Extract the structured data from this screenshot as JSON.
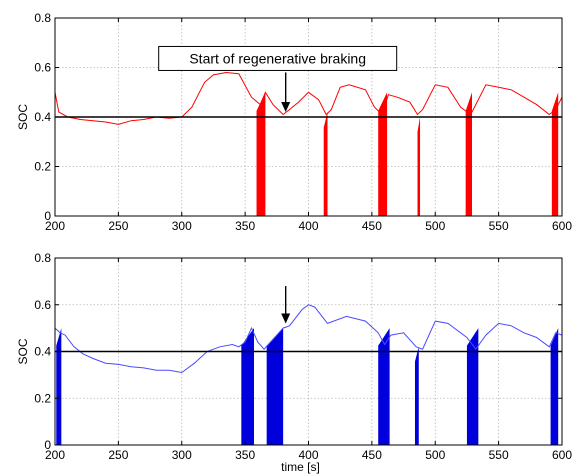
{
  "chart_data": [
    {
      "type": "line",
      "title": "",
      "xlabel": "",
      "ylabel": "SOC",
      "xlim": [
        200,
        600
      ],
      "ylim": [
        0,
        0.8
      ],
      "xticks": [
        200,
        250,
        300,
        350,
        400,
        450,
        500,
        550,
        600
      ],
      "yticks": [
        0,
        0.2,
        0.4,
        0.6,
        0.8
      ],
      "grid": true,
      "reference_line": {
        "y": 0.4,
        "color": "#000000"
      },
      "series": [
        {
          "color": "#ff0000",
          "x": [
            200,
            203,
            210,
            220,
            230,
            240,
            250,
            260,
            270,
            280,
            290,
            300,
            308,
            318,
            325,
            335,
            345,
            355,
            362,
            366,
            372,
            380,
            385,
            392,
            400,
            408,
            414,
            418,
            425,
            432,
            445,
            452,
            458,
            463,
            470,
            480,
            486,
            490,
            500,
            510,
            520,
            528,
            532,
            540,
            550,
            560,
            570,
            580,
            590,
            595,
            600
          ],
          "y": [
            0.5,
            0.42,
            0.4,
            0.39,
            0.385,
            0.38,
            0.37,
            0.385,
            0.39,
            0.4,
            0.395,
            0.4,
            0.44,
            0.54,
            0.57,
            0.58,
            0.575,
            0.48,
            0.45,
            0.5,
            0.45,
            0.41,
            0.43,
            0.46,
            0.5,
            0.47,
            0.41,
            0.43,
            0.52,
            0.53,
            0.51,
            0.44,
            0.41,
            0.49,
            0.48,
            0.46,
            0.41,
            0.43,
            0.53,
            0.52,
            0.44,
            0.41,
            0.45,
            0.53,
            0.52,
            0.51,
            0.48,
            0.45,
            0.41,
            0.43,
            0.48
          ]
        }
      ],
      "fills": [
        {
          "color": "#ff0000",
          "x": [
            359,
            366
          ],
          "y_top": 0.5
        },
        {
          "color": "#ff0000",
          "x": [
            412,
            415
          ],
          "y_top": 0.42
        },
        {
          "color": "#ff0000",
          "x": [
            455,
            462
          ],
          "y_top": 0.5
        },
        {
          "color": "#ff0000",
          "x": [
            486,
            488
          ],
          "y_top": 0.4
        },
        {
          "color": "#ff0000",
          "x": [
            524,
            529
          ],
          "y_top": 0.5
        },
        {
          "color": "#ff0000",
          "x": [
            592,
            597
          ],
          "y_top": 0.5
        }
      ],
      "annotations": [
        {
          "text": "Start of regenerative braking",
          "arrow_x": 382,
          "arrow_y_from": 0.58,
          "arrow_y_to": 0.42
        }
      ]
    },
    {
      "type": "line",
      "title": "",
      "xlabel": "time [s]",
      "ylabel": "SOC",
      "xlim": [
        200,
        600
      ],
      "ylim": [
        0,
        0.8
      ],
      "xticks": [
        200,
        250,
        300,
        350,
        400,
        450,
        500,
        550,
        600
      ],
      "yticks": [
        0,
        0.2,
        0.4,
        0.6,
        0.8
      ],
      "grid": true,
      "reference_line": {
        "y": 0.4,
        "color": "#000000"
      },
      "series": [
        {
          "color": "#4a4aff",
          "x": [
            200,
            204,
            208,
            215,
            222,
            230,
            240,
            250,
            260,
            270,
            280,
            290,
            300,
            310,
            320,
            330,
            340,
            345,
            350,
            355,
            360,
            365,
            370,
            375,
            380,
            385,
            395,
            400,
            405,
            415,
            430,
            445,
            455,
            460,
            465,
            475,
            485,
            490,
            500,
            510,
            525,
            532,
            540,
            550,
            560,
            570,
            580,
            590,
            595,
            600
          ],
          "y": [
            0.5,
            0.48,
            0.47,
            0.42,
            0.39,
            0.37,
            0.35,
            0.345,
            0.335,
            0.33,
            0.32,
            0.32,
            0.31,
            0.35,
            0.4,
            0.42,
            0.43,
            0.42,
            0.44,
            0.5,
            0.44,
            0.41,
            0.44,
            0.47,
            0.5,
            0.51,
            0.58,
            0.6,
            0.59,
            0.52,
            0.55,
            0.53,
            0.48,
            0.43,
            0.47,
            0.48,
            0.42,
            0.41,
            0.53,
            0.52,
            0.46,
            0.41,
            0.47,
            0.52,
            0.51,
            0.48,
            0.46,
            0.42,
            0.48,
            0.47
          ]
        }
      ],
      "fills": [
        {
          "color": "#0000dd",
          "x": [
            201,
            205
          ],
          "y_top": 0.5
        },
        {
          "color": "#0000dd",
          "x": [
            347,
            357
          ],
          "y_top": 0.5
        },
        {
          "color": "#0000dd",
          "x": [
            367,
            380
          ],
          "y_top": 0.5
        },
        {
          "color": "#0000dd",
          "x": [
            455,
            464
          ],
          "y_top": 0.5
        },
        {
          "color": "#0000dd",
          "x": [
            484,
            487
          ],
          "y_top": 0.42
        },
        {
          "color": "#0000dd",
          "x": [
            525,
            534
          ],
          "y_top": 0.5
        },
        {
          "color": "#0000dd",
          "x": [
            591,
            597
          ],
          "y_top": 0.5
        }
      ],
      "annotations": [
        {
          "text": "",
          "arrow_x": 382,
          "arrow_y_from": 0.68,
          "arrow_y_to": 0.52
        }
      ]
    }
  ]
}
